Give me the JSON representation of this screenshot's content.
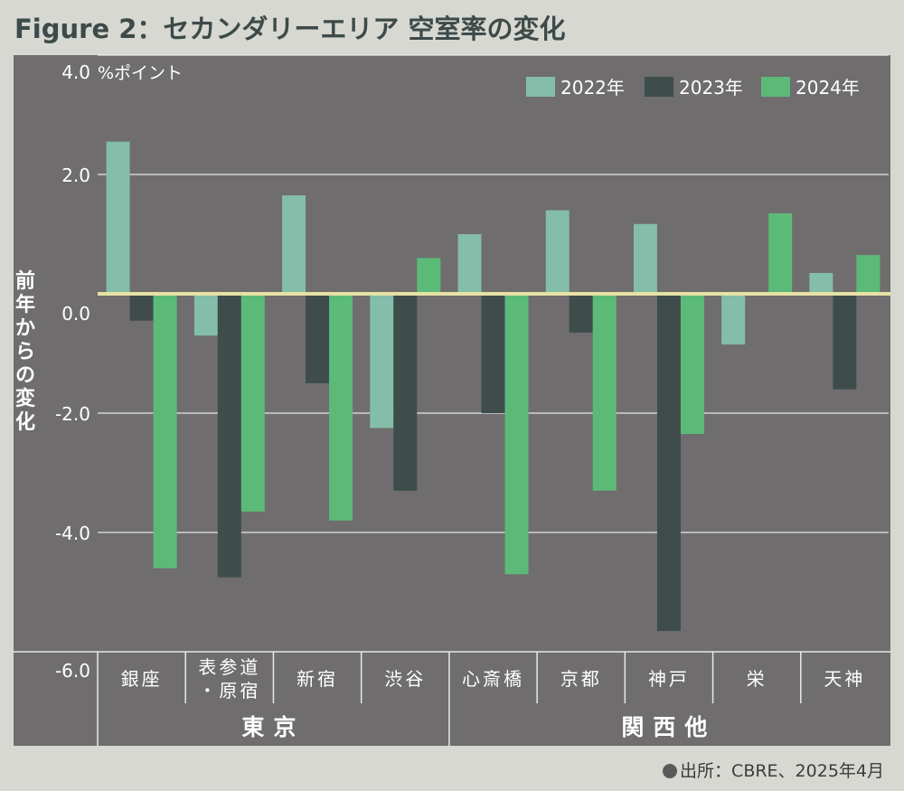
{
  "title": "Figure 2：セカンダリーエリア 空室率の変化",
  "source": "出所：CBRE、2025年4月",
  "colors": {
    "background": "#d7d8d2",
    "plot_background": "#6f6d6e",
    "zero_line": "#e6e2a4",
    "grid": "#e8e8e8",
    "series": [
      "#84bda9",
      "#3e4c4c",
      "#5cba78"
    ]
  },
  "chart_data": {
    "type": "bar",
    "title": "",
    "ylabel": "前年からの変化",
    "yunit": "%ポイント",
    "ylim": [
      -6.0,
      4.0
    ],
    "yticks": [
      "4.0",
      "2.0",
      "0.0",
      "-2.0",
      "-4.0",
      "-6.0"
    ],
    "ytick_values": [
      4.0,
      2.0,
      0.0,
      -2.0,
      -4.0,
      -6.0
    ],
    "grid": true,
    "legend_position": "top-right",
    "categories": [
      "銀座",
      "表参道・原宿",
      "新宿",
      "渋谷",
      "心斎橋",
      "京都",
      "神戸",
      "栄",
      "天神"
    ],
    "category_labels": [
      [
        "銀座"
      ],
      [
        "表参道",
        "・原宿"
      ],
      [
        "新宿"
      ],
      [
        "渋谷"
      ],
      [
        "心斎橋"
      ],
      [
        "京都"
      ],
      [
        "神戸"
      ],
      [
        "栄"
      ],
      [
        "天神"
      ]
    ],
    "groups": [
      {
        "name": "東京",
        "categories": [
          "銀座",
          "表参道・原宿",
          "新宿",
          "渋谷"
        ]
      },
      {
        "name": "関西他",
        "categories": [
          "心斎橋",
          "京都",
          "神戸",
          "栄",
          "天神"
        ]
      }
    ],
    "series": [
      {
        "name": "2022年",
        "values": [
          2.55,
          -0.7,
          1.65,
          -2.25,
          1.0,
          1.4,
          1.17,
          -0.85,
          0.35
        ]
      },
      {
        "name": "2023年",
        "values": [
          -0.45,
          -4.75,
          -1.5,
          -3.3,
          -2.0,
          -0.65,
          -5.65,
          0.0,
          -1.6
        ]
      },
      {
        "name": "2024年",
        "values": [
          -4.6,
          -3.65,
          -3.8,
          0.6,
          -4.7,
          -3.3,
          -2.35,
          1.35,
          0.65
        ]
      }
    ]
  }
}
